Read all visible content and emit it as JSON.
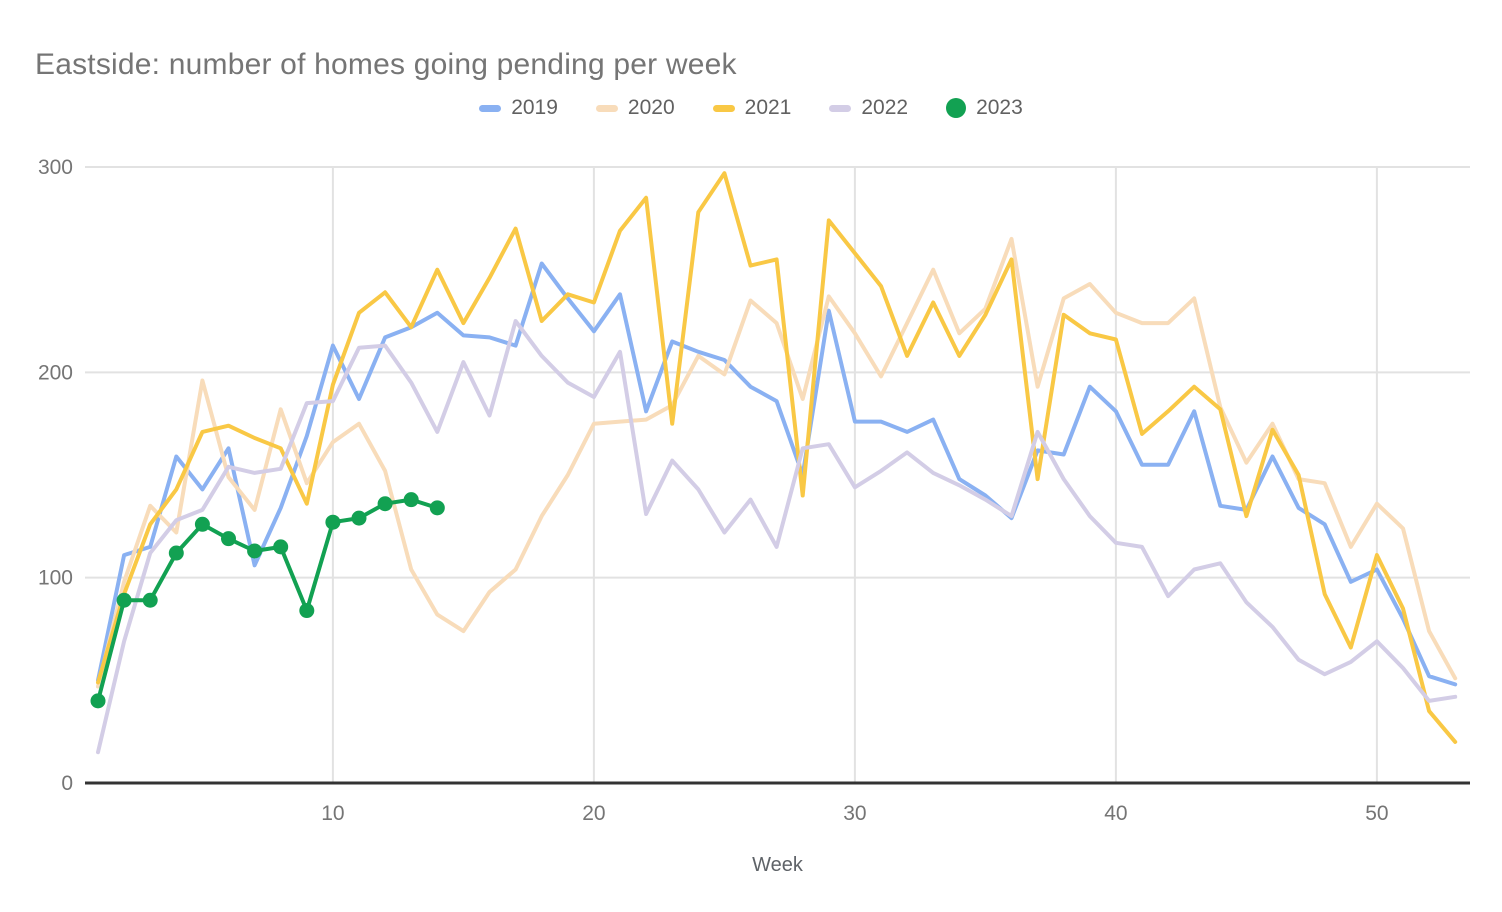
{
  "title": "Eastside: number of homes going pending per week",
  "colors": {
    "title_text": "#757575",
    "axis_text": "#757575",
    "legend_text": "#616161",
    "gridline": "#e2e2e2",
    "axis_line": "#333333",
    "series_2019": "#8ab1f2",
    "series_2020": "#f8dcba",
    "series_2021": "#f9c845",
    "series_2022": "#d3cde6",
    "series_2023": "#12a152"
  },
  "chart_data": {
    "type": "line",
    "title": "Eastside: number of homes going pending per week",
    "xlabel": "Week",
    "ylabel": "",
    "xlim": [
      1,
      53
    ],
    "ylim": [
      0,
      300
    ],
    "x_ticks": [
      10,
      20,
      30,
      40,
      50
    ],
    "y_ticks": [
      0,
      100,
      200,
      300
    ],
    "grid": true,
    "legend_position": "top",
    "series": [
      {
        "name": "2019",
        "color": "#8ab1f2",
        "marker": false,
        "start_week": 1,
        "values": [
          50,
          111,
          115,
          159,
          143,
          163,
          106,
          134,
          169,
          213,
          187,
          217,
          222,
          229,
          218,
          217,
          213,
          253,
          236,
          220,
          238,
          181,
          215,
          210,
          206,
          193,
          186,
          150,
          230,
          176,
          176,
          171,
          177,
          148,
          140,
          129,
          162,
          160,
          193,
          181,
          155,
          155,
          181,
          135,
          133,
          159,
          134,
          126,
          98,
          104,
          80,
          52,
          48
        ]
      },
      {
        "name": "2020",
        "color": "#f8dcba",
        "marker": false,
        "start_week": 1,
        "values": [
          47,
          98,
          135,
          122,
          196,
          149,
          133,
          182,
          146,
          166,
          175,
          152,
          104,
          82,
          74,
          93,
          104,
          130,
          150,
          175,
          176,
          177,
          184,
          208,
          199,
          235,
          224,
          187,
          237,
          219,
          198,
          224,
          250,
          219,
          231,
          265,
          193,
          236,
          243,
          229,
          224,
          224,
          236,
          183,
          156,
          175,
          148,
          146,
          115,
          136,
          124,
          74,
          51
        ]
      },
      {
        "name": "2021",
        "color": "#f9c845",
        "marker": false,
        "start_week": 1,
        "values": [
          49,
          92,
          126,
          143,
          171,
          174,
          168,
          163,
          136,
          194,
          229,
          239,
          222,
          250,
          224,
          246,
          270,
          225,
          238,
          234,
          269,
          285,
          175,
          278,
          297,
          252,
          255,
          140,
          274,
          258,
          242,
          208,
          234,
          208,
          228,
          255,
          148,
          228,
          219,
          216,
          170,
          181,
          193,
          182,
          130,
          172,
          150,
          92,
          66,
          111,
          85,
          35,
          20
        ]
      },
      {
        "name": "2022",
        "color": "#d3cde6",
        "marker": false,
        "start_week": 1,
        "values": [
          15,
          69,
          112,
          128,
          133,
          154,
          151,
          153,
          185,
          186,
          212,
          213,
          195,
          171,
          205,
          179,
          225,
          208,
          195,
          188,
          210,
          131,
          157,
          143,
          122,
          138,
          115,
          163,
          165,
          144,
          152,
          161,
          151,
          145,
          138,
          130,
          171,
          148,
          130,
          117,
          115,
          91,
          104,
          107,
          88,
          76,
          60,
          53,
          59,
          69,
          56,
          40,
          42
        ]
      },
      {
        "name": "2023",
        "color": "#12a152",
        "marker": true,
        "start_week": 1,
        "values": [
          40,
          89,
          89,
          112,
          126,
          119,
          113,
          115,
          84,
          127,
          129,
          136,
          138,
          134
        ]
      }
    ]
  }
}
